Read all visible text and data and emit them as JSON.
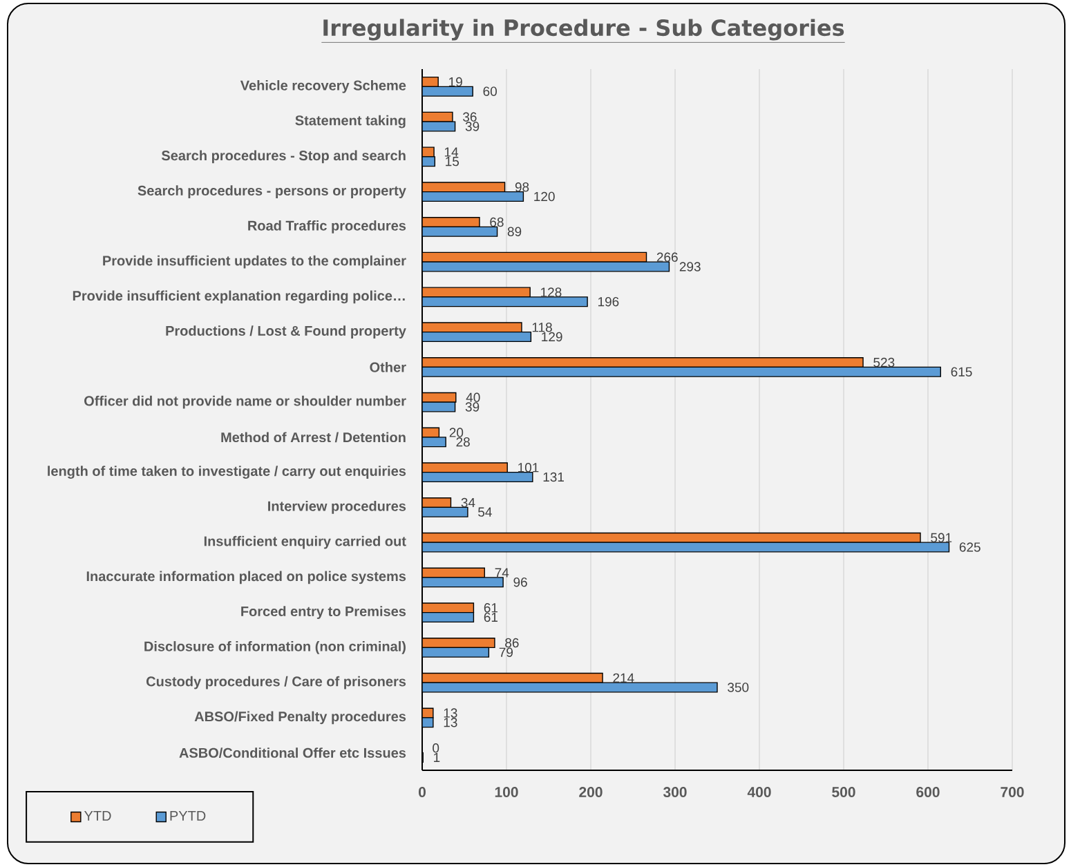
{
  "chart_data": {
    "type": "bar",
    "orientation": "horizontal",
    "title": "Irregularity in Procedure - Sub Categories",
    "categories": [
      "Vehicle recovery Scheme",
      "Statement taking",
      "Search procedures - Stop and search",
      "Search procedures - persons or property",
      "Road Traffic procedures",
      "Provide insufficient updates to the complainer",
      "Provide insufficient explanation regarding police…",
      "Productions / Lost & Found property",
      "Other",
      "Officer did not provide name or shoulder number",
      "Method of Arrest / Detention",
      "length of time taken to investigate / carry out enquiries",
      "Interview procedures",
      "Insufficient enquiry carried out",
      "Inaccurate information placed on police systems",
      "Forced entry to Premises",
      "Disclosure of information (non criminal)",
      "Custody procedures / Care of prisoners",
      "ABSO/Fixed Penalty procedures",
      "ASBO/Conditional Offer etc Issues"
    ],
    "series": [
      {
        "name": "YTD",
        "color": "#ed7d31",
        "values": [
          19,
          36,
          14,
          98,
          68,
          266,
          128,
          118,
          523,
          40,
          20,
          101,
          34,
          591,
          74,
          61,
          86,
          214,
          13,
          0
        ]
      },
      {
        "name": "PYTD",
        "color": "#5b9bd5",
        "values": [
          60,
          39,
          15,
          120,
          89,
          293,
          196,
          129,
          615,
          39,
          28,
          131,
          54,
          625,
          96,
          61,
          79,
          350,
          13,
          1
        ]
      }
    ],
    "xlim": [
      0,
      700
    ],
    "xticks": [
      0,
      100,
      200,
      300,
      400,
      500,
      600,
      700
    ],
    "grid": "x",
    "legend": "bottom left",
    "data_labels": true
  }
}
